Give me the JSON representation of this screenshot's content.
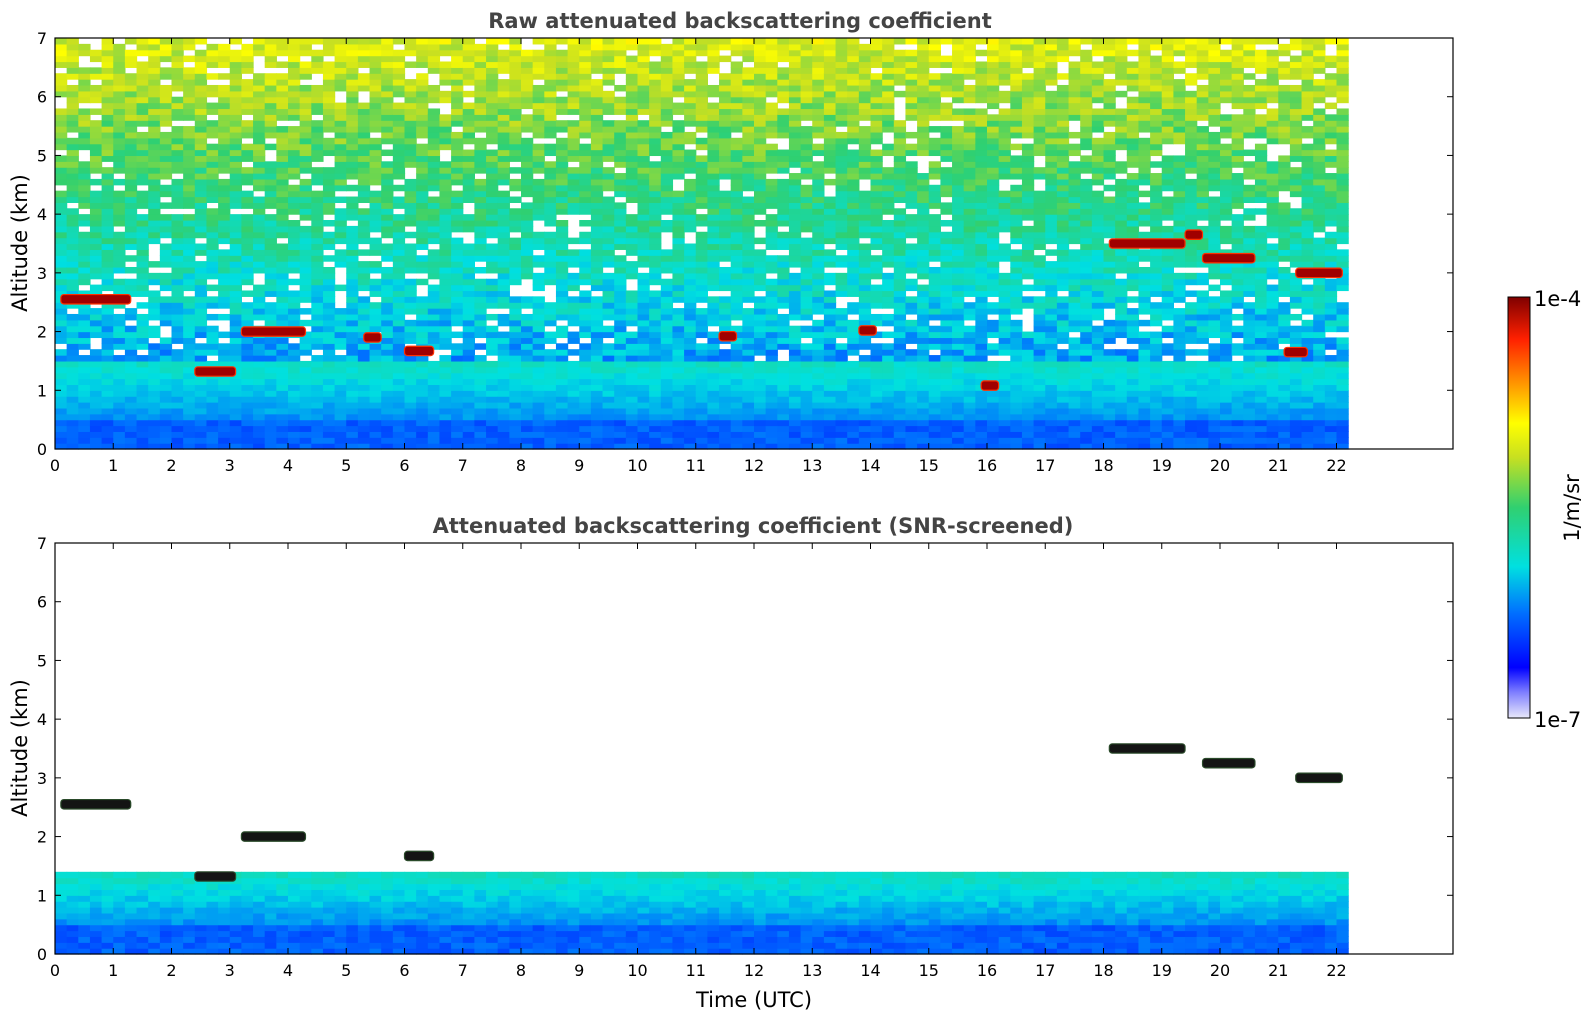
{
  "chart_data": [
    {
      "type": "heatmap",
      "title": "Raw attenuated backscattering coefficient",
      "xlabel": "",
      "ylabel": "Altitude (km)",
      "xlim": [
        0,
        24
      ],
      "ylim": [
        0,
        7
      ],
      "xticks": [
        "0",
        "1",
        "2",
        "3",
        "4",
        "5",
        "6",
        "7",
        "8",
        "9",
        "10",
        "11",
        "12",
        "13",
        "14",
        "15",
        "16",
        "17",
        "18",
        "19",
        "20",
        "21",
        "22"
      ],
      "yticks": [
        "0",
        "1",
        "2",
        "3",
        "4",
        "5",
        "6",
        "7"
      ],
      "data_end_hour": 22.2,
      "grid": false,
      "features": [
        {
          "name": "boundary layer aerosol",
          "t_start": 0,
          "t_end": 22.2,
          "alt_top_km": 1.5
        },
        {
          "name": "cloud",
          "t_start": 0.1,
          "t_end": 1.3,
          "alt_km": 2.55
        },
        {
          "name": "cloud",
          "t_start": 2.4,
          "t_end": 3.1,
          "alt_km": 1.32
        },
        {
          "name": "cloud",
          "t_start": 3.2,
          "t_end": 4.3,
          "alt_km": 2.0
        },
        {
          "name": "cloud",
          "t_start": 5.3,
          "t_end": 5.6,
          "alt_km": 1.9
        },
        {
          "name": "cloud",
          "t_start": 6.0,
          "t_end": 6.5,
          "alt_km": 1.67
        },
        {
          "name": "cloud",
          "t_start": 11.4,
          "t_end": 11.7,
          "alt_km": 1.92
        },
        {
          "name": "cloud",
          "t_start": 13.8,
          "t_end": 14.1,
          "alt_km": 2.02
        },
        {
          "name": "cloud",
          "t_start": 15.9,
          "t_end": 16.2,
          "alt_km": 1.08
        },
        {
          "name": "cloud",
          "t_start": 18.1,
          "t_end": 19.4,
          "alt_km": 3.5
        },
        {
          "name": "cloud",
          "t_start": 19.4,
          "t_end": 19.7,
          "alt_km": 3.65
        },
        {
          "name": "cloud",
          "t_start": 19.7,
          "t_end": 20.6,
          "alt_km": 3.25
        },
        {
          "name": "cloud",
          "t_start": 21.3,
          "t_end": 22.1,
          "alt_km": 3.0
        },
        {
          "name": "cloud",
          "t_start": 21.1,
          "t_end": 21.5,
          "alt_km": 1.65
        }
      ]
    },
    {
      "type": "heatmap",
      "title": "Attenuated backscattering coefficient (SNR-screened)",
      "xlabel": "Time (UTC)",
      "ylabel": "Altitude (km)",
      "xlim": [
        0,
        24
      ],
      "ylim": [
        0,
        7
      ],
      "xticks": [
        "0",
        "1",
        "2",
        "3",
        "4",
        "5",
        "6",
        "7",
        "8",
        "9",
        "10",
        "11",
        "12",
        "13",
        "14",
        "15",
        "16",
        "17",
        "18",
        "19",
        "20",
        "21",
        "22"
      ],
      "yticks": [
        "0",
        "1",
        "2",
        "3",
        "4",
        "5",
        "6",
        "7"
      ],
      "data_end_hour": 22.2,
      "grid": false,
      "features": [
        {
          "name": "boundary layer aerosol",
          "t_start": 0,
          "t_end": 22.2,
          "alt_top_km": 1.35
        },
        {
          "name": "cloud",
          "t_start": 0.1,
          "t_end": 1.3,
          "alt_km": 2.55
        },
        {
          "name": "cloud",
          "t_start": 2.4,
          "t_end": 3.1,
          "alt_km": 1.32
        },
        {
          "name": "cloud",
          "t_start": 3.2,
          "t_end": 4.3,
          "alt_km": 2.0
        },
        {
          "name": "cloud",
          "t_start": 6.0,
          "t_end": 6.5,
          "alt_km": 1.67
        },
        {
          "name": "cloud",
          "t_start": 18.1,
          "t_end": 19.4,
          "alt_km": 3.5
        },
        {
          "name": "cloud",
          "t_start": 19.7,
          "t_end": 20.6,
          "alt_km": 3.25
        },
        {
          "name": "cloud",
          "t_start": 21.3,
          "t_end": 22.1,
          "alt_km": 3.0
        }
      ]
    }
  ],
  "colorbar": {
    "label": "1/m/sr",
    "min_label": "1e-7",
    "max_label": "1e-4",
    "colormap": [
      "#e6e6fa",
      "#0000ff",
      "#00ffff",
      "#ffff00",
      "#ff0000",
      "#7f0000"
    ]
  }
}
